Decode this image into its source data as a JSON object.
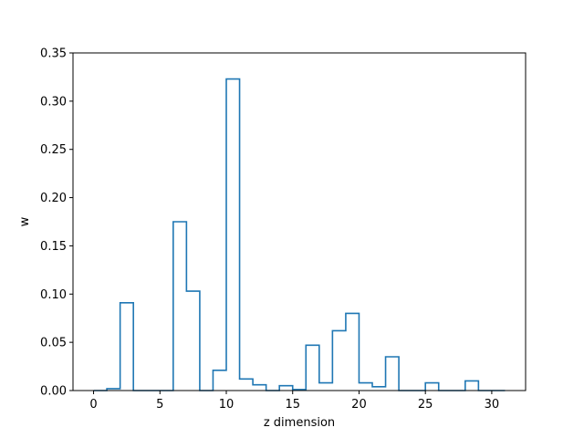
{
  "chart_data": {
    "type": "step-histogram",
    "title": "",
    "xlabel": "z dimension",
    "ylabel": "w",
    "xlim": [
      -1.55,
      32.55
    ],
    "ylim": [
      0,
      0.35
    ],
    "xticks": [
      0,
      5,
      10,
      15,
      20,
      25,
      30
    ],
    "yticks": [
      0.0,
      0.05,
      0.1,
      0.15,
      0.2,
      0.25,
      0.3,
      0.35
    ],
    "xtick_labels": [
      "0",
      "5",
      "10",
      "15",
      "20",
      "25",
      "30"
    ],
    "ytick_labels": [
      "0.00",
      "0.05",
      "0.10",
      "0.15",
      "0.20",
      "0.25",
      "0.30",
      "0.35"
    ],
    "bin_edges": [
      0,
      1,
      2,
      3,
      4,
      5,
      6,
      7,
      8,
      9,
      10,
      11,
      12,
      13,
      14,
      15,
      16,
      17,
      18,
      19,
      20,
      21,
      22,
      23,
      24,
      25,
      26,
      27,
      28,
      29,
      30,
      31
    ],
    "values": [
      0.0,
      0.002,
      0.091,
      0.0,
      0.0,
      0.0,
      0.175,
      0.103,
      0.0,
      0.021,
      0.323,
      0.012,
      0.006,
      0.0,
      0.005,
      0.001,
      0.047,
      0.008,
      0.062,
      0.08,
      0.008,
      0.004,
      0.035,
      0.0,
      0.0,
      0.008,
      0.0,
      0.0,
      0.01,
      0.0,
      0.0
    ],
    "line_color": "#1f77b4",
    "grid": false
  }
}
